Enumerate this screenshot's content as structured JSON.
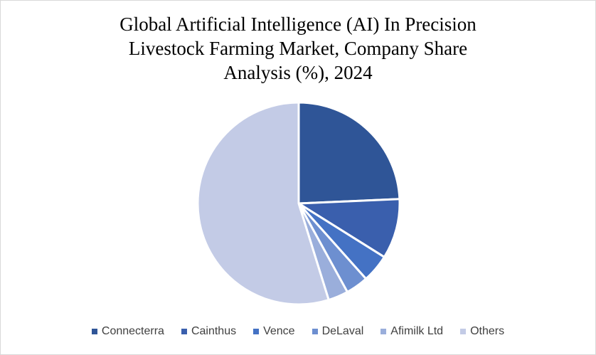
{
  "chart_data": {
    "type": "pie",
    "title": "Global Artificial Intelligence (AI) In Precision\nLivestock Farming Market, Company Share\nAnalysis (%), 2024",
    "series": [
      {
        "name": "Connecterra",
        "value": 24.3,
        "color": "#2f5597"
      },
      {
        "name": "Cainthus",
        "value": 9.6,
        "color": "#3a5fad"
      },
      {
        "name": "Vence",
        "value": 4.5,
        "color": "#4472c4"
      },
      {
        "name": "DeLaval",
        "value": 3.6,
        "color": "#6d8fd0"
      },
      {
        "name": "Afimilk Ltd",
        "value": 3.2,
        "color": "#9aaedb"
      },
      {
        "name": "Others",
        "value": 54.8,
        "color": "#c3cbe6"
      }
    ],
    "legend_position": "bottom"
  }
}
